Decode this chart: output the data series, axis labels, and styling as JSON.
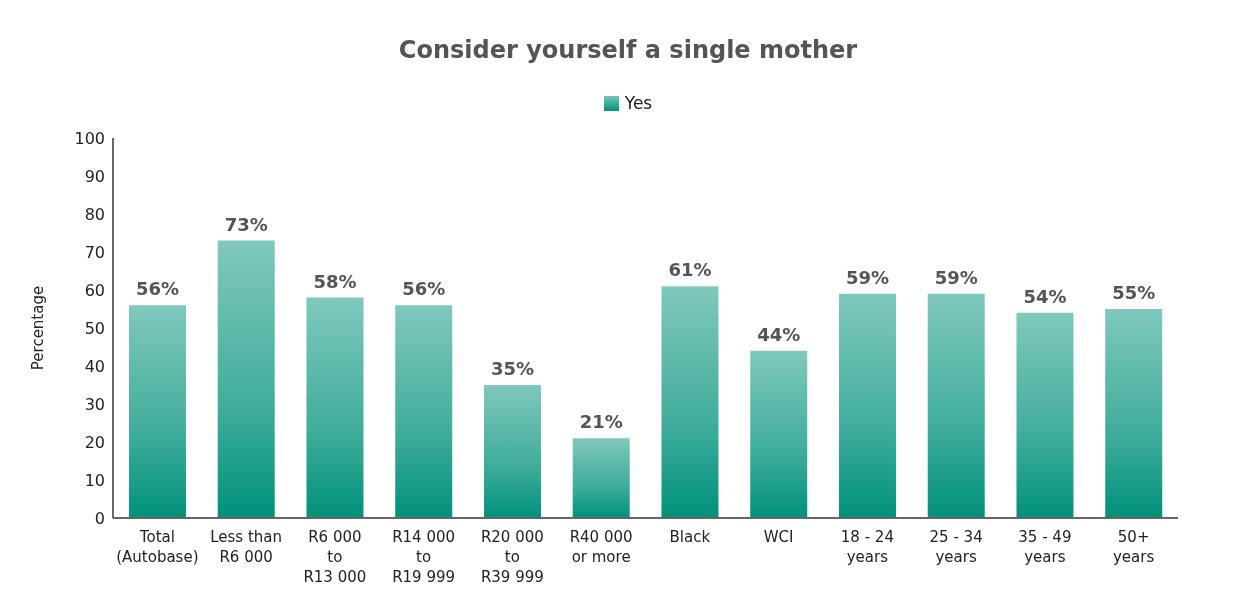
{
  "chart_data": {
    "type": "bar",
    "title": "Consider yourself a single mother",
    "ylabel": "Percentage",
    "categories": [
      "Total\n(Autobase)",
      "Less than\nR6 000",
      "R6 000\nto\nR13 000",
      "R14 000\nto\nR19 999",
      "R20 000\nto\nR39 999",
      "R40 000\nor more",
      "Black",
      "WCI",
      "18 - 24\nyears",
      "25 - 34\nyears",
      "35 - 49\nyears",
      "50+\nyears"
    ],
    "series": [
      {
        "name": "Yes",
        "color": "#00917a",
        "values": [
          56,
          73,
          58,
          56,
          35,
          21,
          61,
          44,
          59,
          59,
          54,
          55
        ],
        "value_labels": [
          "56%",
          "73%",
          "58%",
          "56%",
          "35%",
          "21%",
          "61%",
          "44%",
          "59%",
          "59%",
          "54%",
          "55%"
        ]
      }
    ],
    "ylim": [
      0,
      100
    ],
    "yticks": [
      0,
      10,
      20,
      30,
      40,
      50,
      60,
      70,
      80,
      90,
      100
    ],
    "grid": false,
    "legend": "top"
  }
}
